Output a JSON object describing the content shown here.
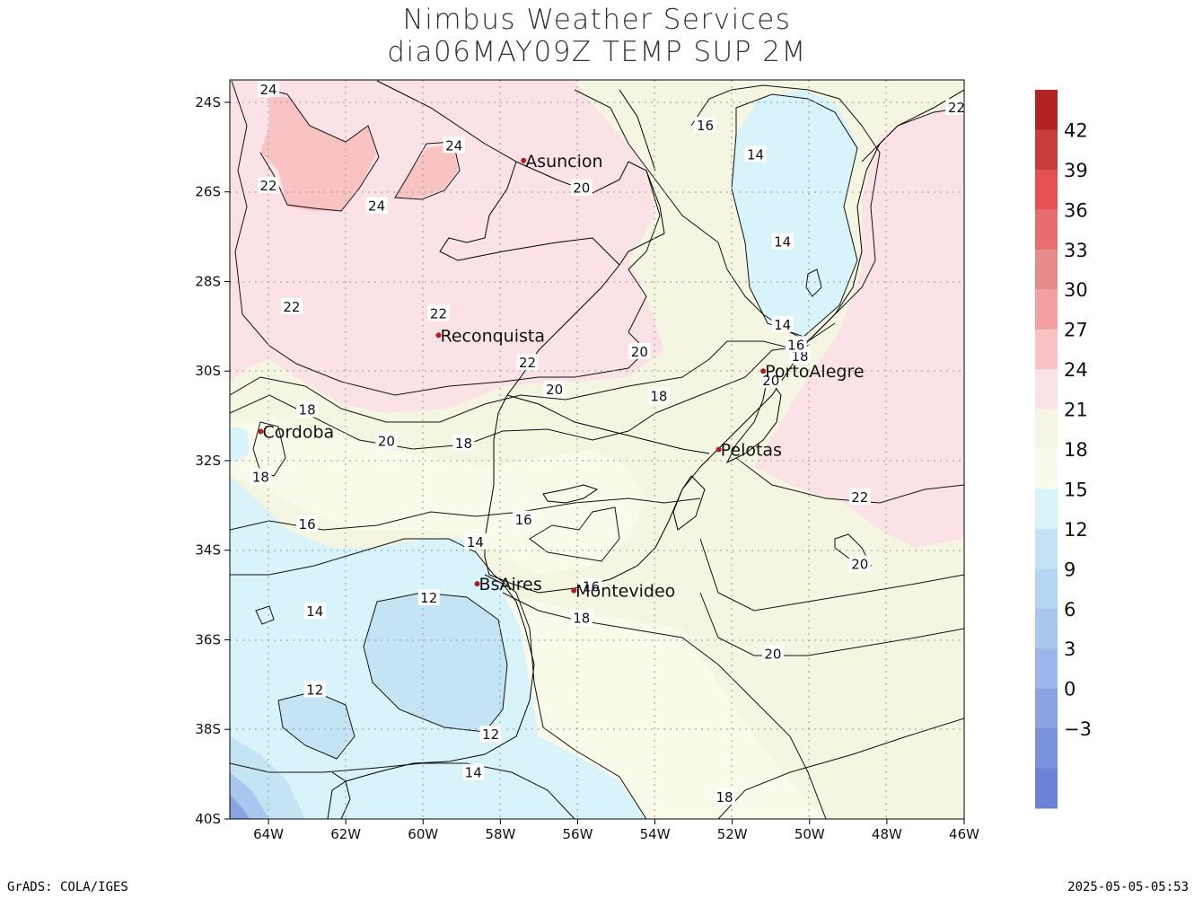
{
  "title": {
    "line1": "Nimbus Weather Services",
    "line2": "dia06MAY09Z TEMP SUP 2M"
  },
  "footer": {
    "left": "GrADS: COLA/IGES",
    "right": "2025-05-05-05:53"
  },
  "map": {
    "projection": "latlon",
    "lon_range": [
      -65,
      -46
    ],
    "lat_range": [
      -40,
      -23.5
    ],
    "grid": "dotted",
    "lat_ticks": [
      {
        "value": -24,
        "label": "24S"
      },
      {
        "value": -26,
        "label": "26S"
      },
      {
        "value": -28,
        "label": "28S"
      },
      {
        "value": -30,
        "label": "30S"
      },
      {
        "value": -32,
        "label": "32S"
      },
      {
        "value": -34,
        "label": "34S"
      },
      {
        "value": -36,
        "label": "36S"
      },
      {
        "value": -38,
        "label": "38S"
      },
      {
        "value": -40,
        "label": "40S"
      }
    ],
    "lon_ticks": [
      {
        "value": -64,
        "label": "64W"
      },
      {
        "value": -62,
        "label": "62W"
      },
      {
        "value": -60,
        "label": "60W"
      },
      {
        "value": -58,
        "label": "58W"
      },
      {
        "value": -56,
        "label": "56W"
      },
      {
        "value": -54,
        "label": "54W"
      },
      {
        "value": -52,
        "label": "52W"
      },
      {
        "value": -50,
        "label": "50W"
      },
      {
        "value": -48,
        "label": "48W"
      },
      {
        "value": -46,
        "label": "46W"
      }
    ],
    "cities": [
      {
        "name": "Asuncion",
        "lon": -57.4,
        "lat": -25.3
      },
      {
        "name": "Reconquista",
        "lon": -59.6,
        "lat": -29.2
      },
      {
        "name": "PortoAlegre",
        "lon": -51.2,
        "lat": -30.0
      },
      {
        "name": "Cordoba",
        "lon": -64.2,
        "lat": -31.35
      },
      {
        "name": "Pelotas",
        "lon": -52.35,
        "lat": -31.75
      },
      {
        "name": "BsAires",
        "lon": -58.6,
        "lat": -34.75
      },
      {
        "name": "Montevideo",
        "lon": -56.1,
        "lat": -34.9
      }
    ],
    "contour_labels": [
      {
        "text": "24",
        "lon": -64.0,
        "lat": -23.7
      },
      {
        "text": "24",
        "lon": -59.2,
        "lat": -24.95
      },
      {
        "text": "24",
        "lon": -61.2,
        "lat": -26.3
      },
      {
        "text": "22",
        "lon": -64.0,
        "lat": -25.85
      },
      {
        "text": "22",
        "lon": -63.4,
        "lat": -28.55
      },
      {
        "text": "22",
        "lon": -59.6,
        "lat": -28.7
      },
      {
        "text": "22",
        "lon": -57.3,
        "lat": -29.8
      },
      {
        "text": "22",
        "lon": -46.2,
        "lat": -24.1
      },
      {
        "text": "22",
        "lon": -48.7,
        "lat": -32.8
      },
      {
        "text": "20",
        "lon": -55.9,
        "lat": -25.9
      },
      {
        "text": "20",
        "lon": -54.4,
        "lat": -29.55
      },
      {
        "text": "20",
        "lon": -56.6,
        "lat": -30.4
      },
      {
        "text": "20",
        "lon": -60.95,
        "lat": -31.55
      },
      {
        "text": "20",
        "lon": -51.0,
        "lat": -30.2
      },
      {
        "text": "20",
        "lon": -48.7,
        "lat": -34.3
      },
      {
        "text": "20",
        "lon": -50.95,
        "lat": -36.3
      },
      {
        "text": "18",
        "lon": -63.0,
        "lat": -30.85
      },
      {
        "text": "18",
        "lon": -64.2,
        "lat": -32.35
      },
      {
        "text": "18",
        "lon": -58.95,
        "lat": -31.6
      },
      {
        "text": "18",
        "lon": -53.9,
        "lat": -30.55
      },
      {
        "text": "18",
        "lon": -50.25,
        "lat": -29.65
      },
      {
        "text": "18",
        "lon": -55.9,
        "lat": -35.5
      },
      {
        "text": "18",
        "lon": -52.2,
        "lat": -39.5
      },
      {
        "text": "16",
        "lon": -52.7,
        "lat": -24.5
      },
      {
        "text": "16",
        "lon": -50.35,
        "lat": -29.4
      },
      {
        "text": "16",
        "lon": -63.0,
        "lat": -33.4
      },
      {
        "text": "16",
        "lon": -57.4,
        "lat": -33.3
      },
      {
        "text": "16",
        "lon": -55.65,
        "lat": -34.8
      },
      {
        "text": "14",
        "lon": -51.4,
        "lat": -25.15
      },
      {
        "text": "14",
        "lon": -50.7,
        "lat": -27.1
      },
      {
        "text": "14",
        "lon": -50.7,
        "lat": -28.95
      },
      {
        "text": "14",
        "lon": -58.65,
        "lat": -33.8
      },
      {
        "text": "14",
        "lon": -62.8,
        "lat": -35.35
      },
      {
        "text": "14",
        "lon": -58.7,
        "lat": -38.95
      },
      {
        "text": "12",
        "lon": -59.85,
        "lat": -35.05
      },
      {
        "text": "12",
        "lon": -62.8,
        "lat": -37.1
      },
      {
        "text": "12",
        "lon": -58.25,
        "lat": -38.1
      }
    ]
  },
  "colorbar": {
    "colors": [
      "#b22424",
      "#c83c3c",
      "#e55050",
      "#e66e6e",
      "#e68c8c",
      "#f5a0a0",
      "#f9c3c3",
      "#fbe2e6",
      "#f4f6e2",
      "#f8faea",
      "#d8f4fa",
      "#c5e4f3",
      "#b5d6f2",
      "#a8c7ee",
      "#9cb8ea",
      "#8aa4e3",
      "#7892dc",
      "#6b82d6"
    ],
    "labels": [
      "42",
      "39",
      "36",
      "33",
      "30",
      "27",
      "24",
      "21",
      "18",
      "15",
      "12",
      "9",
      "6",
      "3",
      "0",
      "−3"
    ]
  },
  "field_colors": {
    "pink_dark": "#f9c3c3",
    "pink": "#fbe2e6",
    "cream": "#f4f6e2",
    "cream_light": "#f8faea",
    "cyan": "#d8f4fa",
    "blue_light": "#c5e4f3",
    "blue_mid": "#a8c7ee",
    "blue_dark": "#8aa4e3",
    "city_dot": "#b01e1e"
  }
}
